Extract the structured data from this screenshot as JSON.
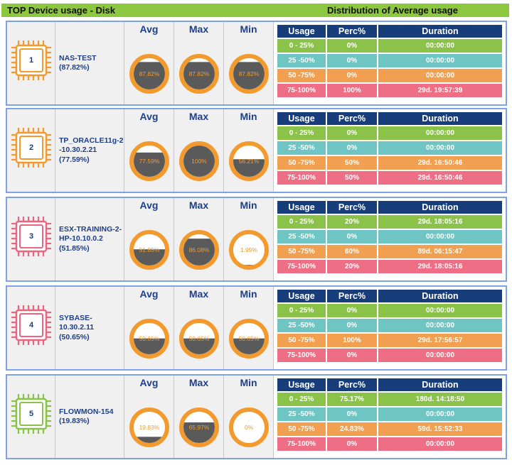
{
  "header": {
    "left_title": "TOP Device usage - Disk",
    "right_title": "Distribution of Average usage"
  },
  "column_labels": {
    "avg": "Avg",
    "max": "Max",
    "min": "Min"
  },
  "table_headers": {
    "usage": "Usage",
    "perc": "Perc%",
    "duration": "Duration"
  },
  "colors": {
    "header_bar": "#8dc63f",
    "gauge_ring": "#f39a2e",
    "gauge_fill": "#5a5a5a",
    "gauge_text": "#f39a2e",
    "table_header": "#173d7a",
    "row_0_25": "#8bc34a",
    "row_25_50": "#6fc5c3",
    "row_50_75": "#f0a050",
    "row_75_100": "#ee6f85"
  },
  "devices": [
    {
      "rank": "1",
      "name_lines": [
        "NAS-TEST",
        "(87.82%)"
      ],
      "icon_color": "#f39a2e",
      "avg": {
        "label": "87.82%",
        "value": 87.82
      },
      "max": {
        "label": "87.82%",
        "value": 87.82
      },
      "min": {
        "label": "87.82%",
        "value": 87.82
      },
      "rows": [
        {
          "usage": "0 - 25%",
          "perc": "0%",
          "duration": "00:00:00"
        },
        {
          "usage": "25 -50%",
          "perc": "0%",
          "duration": "00:00:00"
        },
        {
          "usage": "50 -75%",
          "perc": "0%",
          "duration": "00:00:00"
        },
        {
          "usage": "75-100%",
          "perc": "100%",
          "duration": "29d. 19:57:39"
        }
      ]
    },
    {
      "rank": "2",
      "name_lines": [
        "TP_ORACLE11g-2",
        "-10.30.2.21",
        "(77.59%)"
      ],
      "icon_color": "#f39a2e",
      "avg": {
        "label": "77.59%",
        "value": 77.59
      },
      "max": {
        "label": "100%",
        "value": 100
      },
      "min": {
        "label": "56.21%",
        "value": 56.21
      },
      "rows": [
        {
          "usage": "0 - 25%",
          "perc": "0%",
          "duration": "00:00:00"
        },
        {
          "usage": "25 -50%",
          "perc": "0%",
          "duration": "00:00:00"
        },
        {
          "usage": "50 -75%",
          "perc": "50%",
          "duration": "29d. 16:50:46"
        },
        {
          "usage": "75-100%",
          "perc": "50%",
          "duration": "29d. 16:50:46"
        }
      ]
    },
    {
      "rank": "3",
      "name_lines": [
        "ESX-TRAINING-2-",
        "HP-10.10.0.2",
        "(51.85%)"
      ],
      "icon_color": "#e8667f",
      "avg": {
        "label": "51.85%",
        "value": 51.85
      },
      "max": {
        "label": "86.08%",
        "value": 86.08
      },
      "min": {
        "label": "1.99%",
        "value": 1.99
      },
      "rows": [
        {
          "usage": "0 - 25%",
          "perc": "20%",
          "duration": "29d. 18:05:16"
        },
        {
          "usage": "25 -50%",
          "perc": "0%",
          "duration": "00:00:00"
        },
        {
          "usage": "50 -75%",
          "perc": "60%",
          "duration": "89d. 06:15:47"
        },
        {
          "usage": "75-100%",
          "perc": "20%",
          "duration": "29d. 18:05:16"
        }
      ]
    },
    {
      "rank": "4",
      "name_lines": [
        "SYBASE-",
        "10.30.2.11",
        "(50.65%)"
      ],
      "icon_color": "#e8667f",
      "avg": {
        "label": "50.65%",
        "value": 50.65
      },
      "max": {
        "label": "50.65%",
        "value": 50.65
      },
      "min": {
        "label": "50.65%",
        "value": 50.65
      },
      "rows": [
        {
          "usage": "0 - 25%",
          "perc": "0%",
          "duration": "00:00:00"
        },
        {
          "usage": "25 -50%",
          "perc": "0%",
          "duration": "00:00:00"
        },
        {
          "usage": "50 -75%",
          "perc": "100%",
          "duration": "29d. 17:56:57"
        },
        {
          "usage": "75-100%",
          "perc": "0%",
          "duration": "00:00:00"
        }
      ]
    },
    {
      "rank": "5",
      "name_lines": [
        "FLOWMON-154",
        "(19.83%)"
      ],
      "icon_color": "#8bc34a",
      "avg": {
        "label": "19.83%",
        "value": 19.83
      },
      "max": {
        "label": "65.97%",
        "value": 65.97
      },
      "min": {
        "label": "0%",
        "value": 0
      },
      "rows": [
        {
          "usage": "0 - 25%",
          "perc": "75.17%",
          "duration": "180d. 14:18:50"
        },
        {
          "usage": "25 -50%",
          "perc": "0%",
          "duration": "00:00:00"
        },
        {
          "usage": "50 -75%",
          "perc": "24.83%",
          "duration": "59d. 15:52:33"
        },
        {
          "usage": "75-100%",
          "perc": "0%",
          "duration": "00:00:00"
        }
      ]
    }
  ]
}
